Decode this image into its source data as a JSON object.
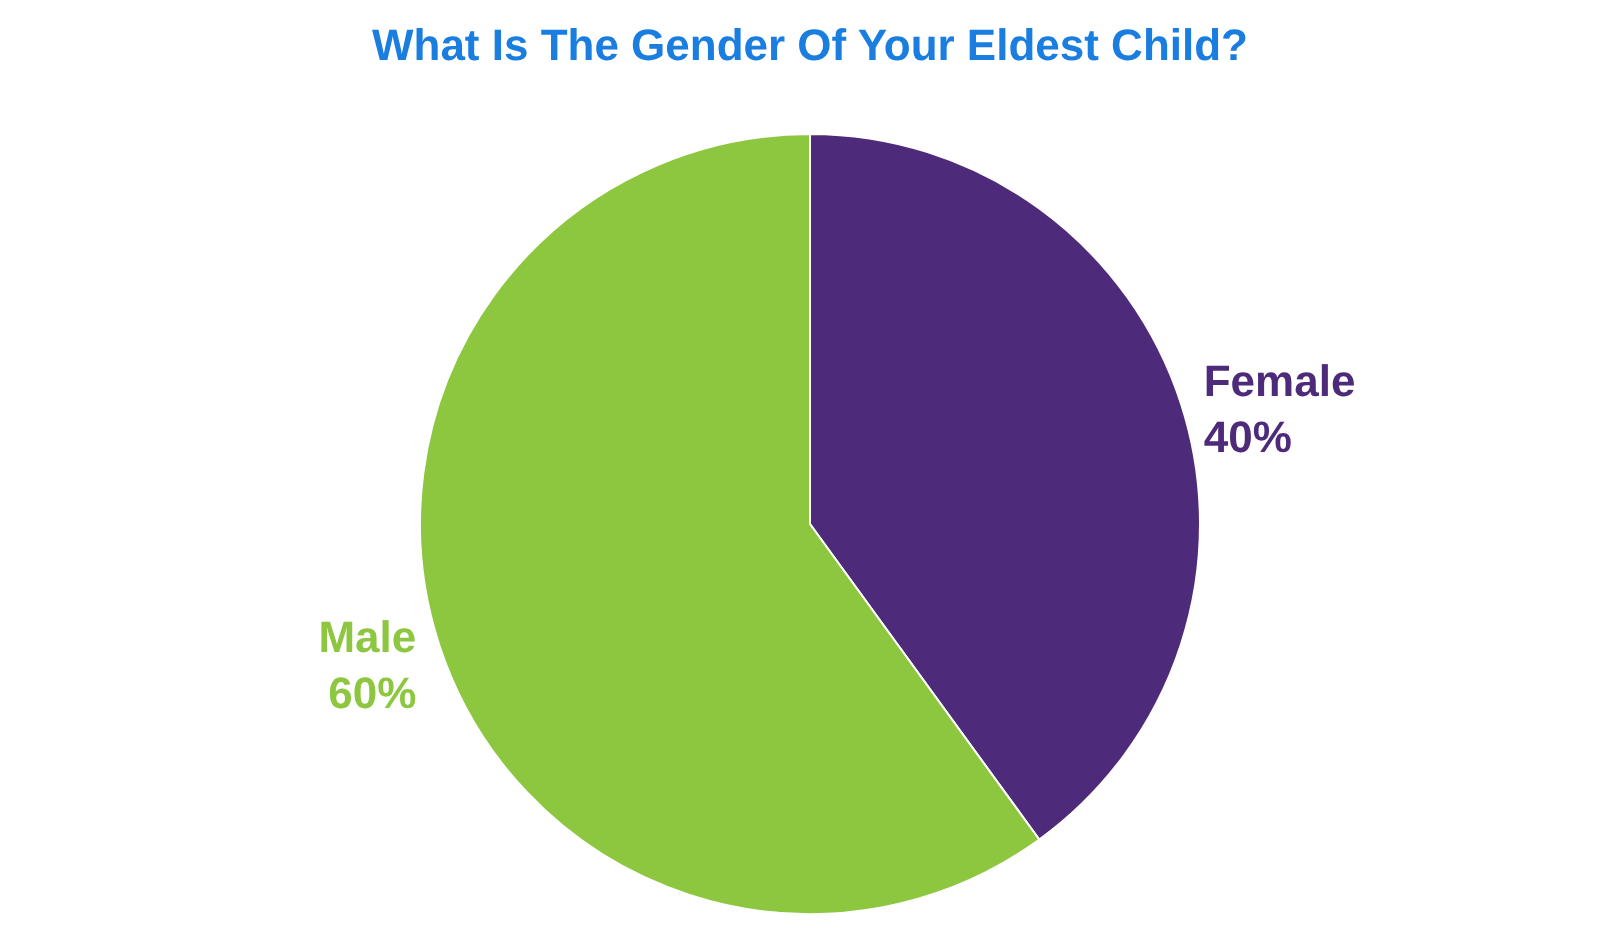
{
  "chart_data": {
    "type": "pie",
    "title": "What Is The Gender Of Your Eldest Child?",
    "categories": [
      "Female",
      "Male"
    ],
    "values": [
      40,
      60
    ],
    "colors": [
      "#4e2a7a",
      "#8dc63f"
    ],
    "value_labels": [
      "40%",
      "60%"
    ]
  }
}
